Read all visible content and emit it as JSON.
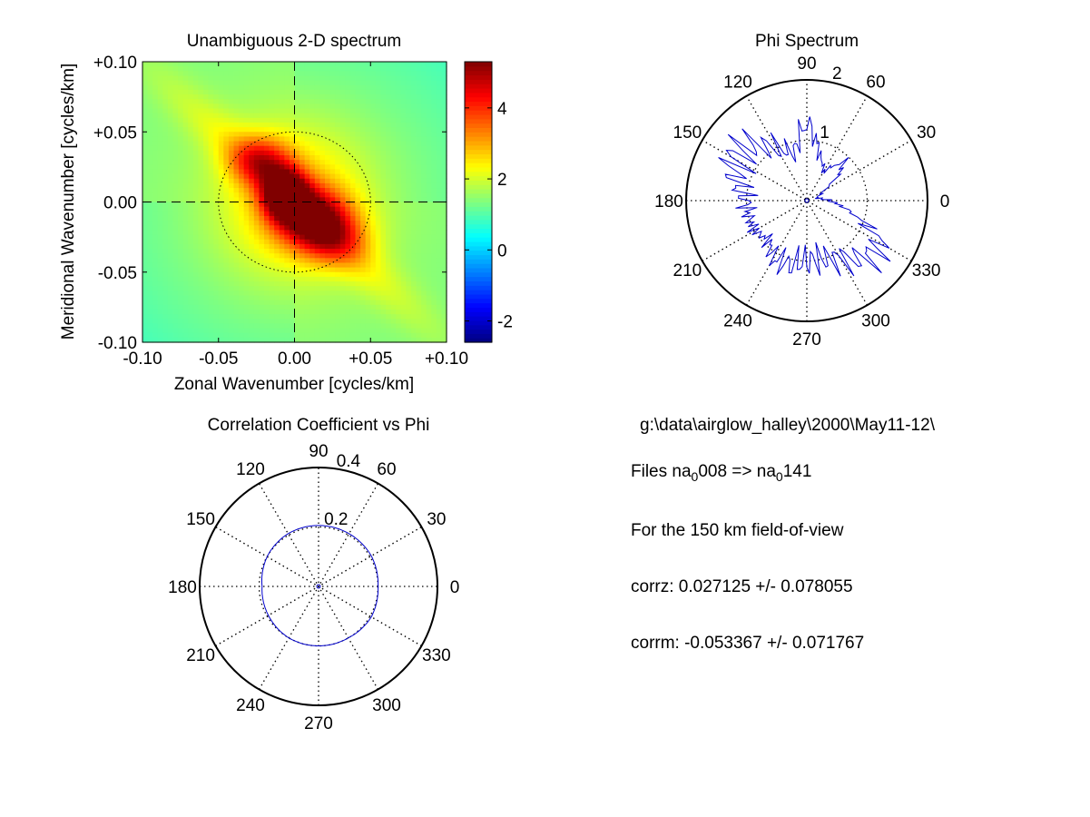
{
  "chart_data": [
    {
      "type": "heatmap",
      "title": "Unambiguous 2-D spectrum",
      "xlabel": "Zonal Wavenumber [cycles/km]",
      "ylabel": "Meridional Wavenumber [cycles/km]",
      "xlim": [
        -0.1,
        0.1
      ],
      "ylim": [
        -0.1,
        0.1
      ],
      "xticks": [
        "-0.10",
        "-0.05",
        "0.00",
        "+0.05",
        "+0.10"
      ],
      "yticks": [
        "+0.10",
        "+0.05",
        "0.00",
        "-0.05",
        "-0.10"
      ],
      "colorbar": {
        "range": [
          -2.6,
          5.3
        ],
        "ticks": [
          "4",
          "2",
          "0",
          "-2"
        ],
        "tick_values": [
          4,
          2,
          0,
          -2
        ],
        "colormap": "jet"
      },
      "reference_circle_radius": 0.05,
      "crosshair_at_origin": true,
      "background_level": 1.5,
      "components": [
        {
          "x": -0.006,
          "y": 0.005,
          "sx": 0.01,
          "sy": 0.012,
          "amp": 3.6
        },
        {
          "x": 0.013,
          "y": -0.012,
          "sx": 0.017,
          "sy": 0.015,
          "amp": 2.6
        },
        {
          "x": -0.022,
          "y": 0.03,
          "sx": 0.014,
          "sy": 0.012,
          "amp": 1.9
        },
        {
          "x": 0.0,
          "y": 0.0,
          "sx": 0.034,
          "sy": 0.037,
          "amp": 1.4
        },
        {
          "x": 0.028,
          "y": -0.028,
          "sx": 0.016,
          "sy": 0.013,
          "amp": 1.2
        }
      ]
    },
    {
      "type": "polar-line",
      "title": "Phi Spectrum",
      "rmax": 2,
      "ring_labels": [
        {
          "r": 1,
          "label": "1"
        },
        {
          "r": 2,
          "label": "2"
        }
      ],
      "angle_labels": [
        "0",
        "30",
        "60",
        "90",
        "120",
        "150",
        "180",
        "210",
        "240",
        "270",
        "300",
        "330"
      ],
      "series_color": "#0000cc",
      "series": {
        "angles_deg": [
          0,
          15,
          30,
          45,
          60,
          75,
          90,
          105,
          120,
          135,
          150,
          165,
          180,
          195,
          210,
          225,
          240,
          255,
          270,
          285,
          300,
          315,
          330,
          345,
          360
        ],
        "r": [
          0.35,
          0.15,
          0.3,
          0.9,
          0.55,
          0.8,
          1.3,
          0.8,
          1.0,
          1.3,
          1.4,
          1.2,
          1.0,
          1.0,
          1.0,
          0.9,
          1.1,
          1.1,
          1.0,
          1.0,
          1.1,
          1.35,
          1.45,
          0.75,
          0.35
        ]
      }
    },
    {
      "type": "polar-line",
      "title": "Correlation Coefficient vs Phi",
      "rmax": 0.4,
      "ring_labels": [
        {
          "r": 0.2,
          "label": "0.2"
        },
        {
          "r": 0.4,
          "label": "0.4"
        }
      ],
      "angle_labels": [
        "0",
        "30",
        "60",
        "90",
        "120",
        "150",
        "180",
        "210",
        "240",
        "270",
        "300",
        "330"
      ],
      "series_color": "#0000cc",
      "series": {
        "angles_deg": [
          0,
          30,
          60,
          90,
          120,
          150,
          180,
          210,
          240,
          270,
          300,
          330,
          360
        ],
        "r": [
          0.2,
          0.205,
          0.205,
          0.205,
          0.205,
          0.2,
          0.19,
          0.195,
          0.2,
          0.2,
          0.2,
          0.205,
          0.2
        ]
      }
    }
  ],
  "info": {
    "path": "g:\\data\\airglow_halley\\2000\\May11-12\\",
    "files_prefix": "Files  na",
    "sub1": "0",
    "files_mid": "008  =>  na",
    "sub2": "0",
    "files_end": "141",
    "fov": "For the  150 km field-of-view",
    "corrz": "corrz: 0.027125 +/- 0.078055",
    "corrm": "corrm: -0.053367 +/- 0.071767"
  }
}
